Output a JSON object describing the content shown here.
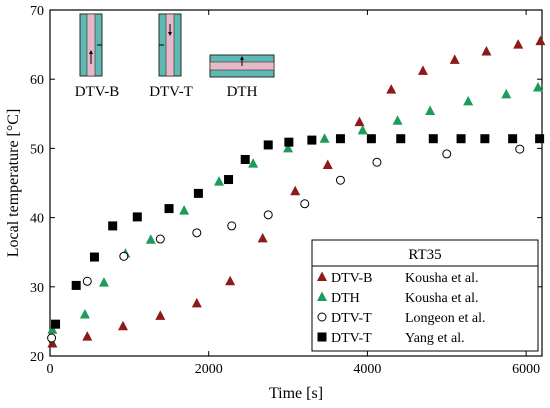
{
  "chart_data": {
    "type": "scatter",
    "xlabel": "Time [s]",
    "ylabel": "Local temperature [°C]",
    "xlim": [
      0,
      6200
    ],
    "ylim": [
      20,
      70
    ],
    "x_ticks": [
      0,
      2000,
      4000,
      6000
    ],
    "y_ticks": [
      20,
      30,
      40,
      50,
      60,
      70
    ],
    "grid": false,
    "legend": {
      "title": "RT35",
      "placement": "bottom-right"
    },
    "series": [
      {
        "name": "DTV-B",
        "source": "Kousha et al.",
        "marker": "triangle",
        "color": "#8b1a1a",
        "x": [
          30,
          470,
          920,
          1390,
          1850,
          2270,
          2680,
          3090,
          3500,
          3900,
          4300,
          4700,
          5100,
          5500,
          5900,
          6180
        ],
        "y": [
          21.8,
          22.8,
          24.3,
          25.8,
          27.6,
          30.8,
          37.0,
          43.8,
          47.6,
          53.8,
          58.5,
          61.2,
          62.8,
          64.0,
          65.0,
          65.5
        ]
      },
      {
        "name": "DTH",
        "source": "Kousha et al.",
        "marker": "triangle",
        "color": "#1e9a5a",
        "x": [
          30,
          440,
          680,
          950,
          1270,
          1690,
          2130,
          2560,
          3000,
          3460,
          3940,
          4380,
          4790,
          5270,
          5750,
          6150
        ],
        "y": [
          23.8,
          26.0,
          30.6,
          34.8,
          36.8,
          41.0,
          45.2,
          47.8,
          50.0,
          51.4,
          52.6,
          54.0,
          55.4,
          56.8,
          57.8,
          58.8
        ]
      },
      {
        "name": "DTV-T",
        "source": "Longeon et al.",
        "marker": "circle",
        "color": "#000000",
        "x": [
          20,
          470,
          930,
          1390,
          1850,
          2290,
          2750,
          3210,
          3660,
          4120,
          5000,
          5920
        ],
        "y": [
          22.6,
          30.8,
          34.4,
          36.9,
          37.8,
          38.8,
          40.4,
          42.0,
          45.4,
          48.0,
          49.2,
          49.9
        ]
      },
      {
        "name": "DTV-T",
        "source": "Yang et al.",
        "marker": "square",
        "color": "#000000",
        "x": [
          70,
          330,
          560,
          790,
          1100,
          1500,
          1870,
          2250,
          2460,
          2750,
          3010,
          3300,
          3660,
          4050,
          4420,
          4830,
          5180,
          5480,
          5830,
          6170
        ],
        "y": [
          24.6,
          30.2,
          34.3,
          38.8,
          40.1,
          41.3,
          43.5,
          45.5,
          48.4,
          50.5,
          50.9,
          51.2,
          51.4,
          51.4,
          51.4,
          51.4,
          51.4,
          51.4,
          51.4,
          51.4
        ]
      }
    ],
    "insets": [
      {
        "label": "DTV-B"
      },
      {
        "label": "DTV-T"
      },
      {
        "label": "DTH"
      }
    ]
  }
}
